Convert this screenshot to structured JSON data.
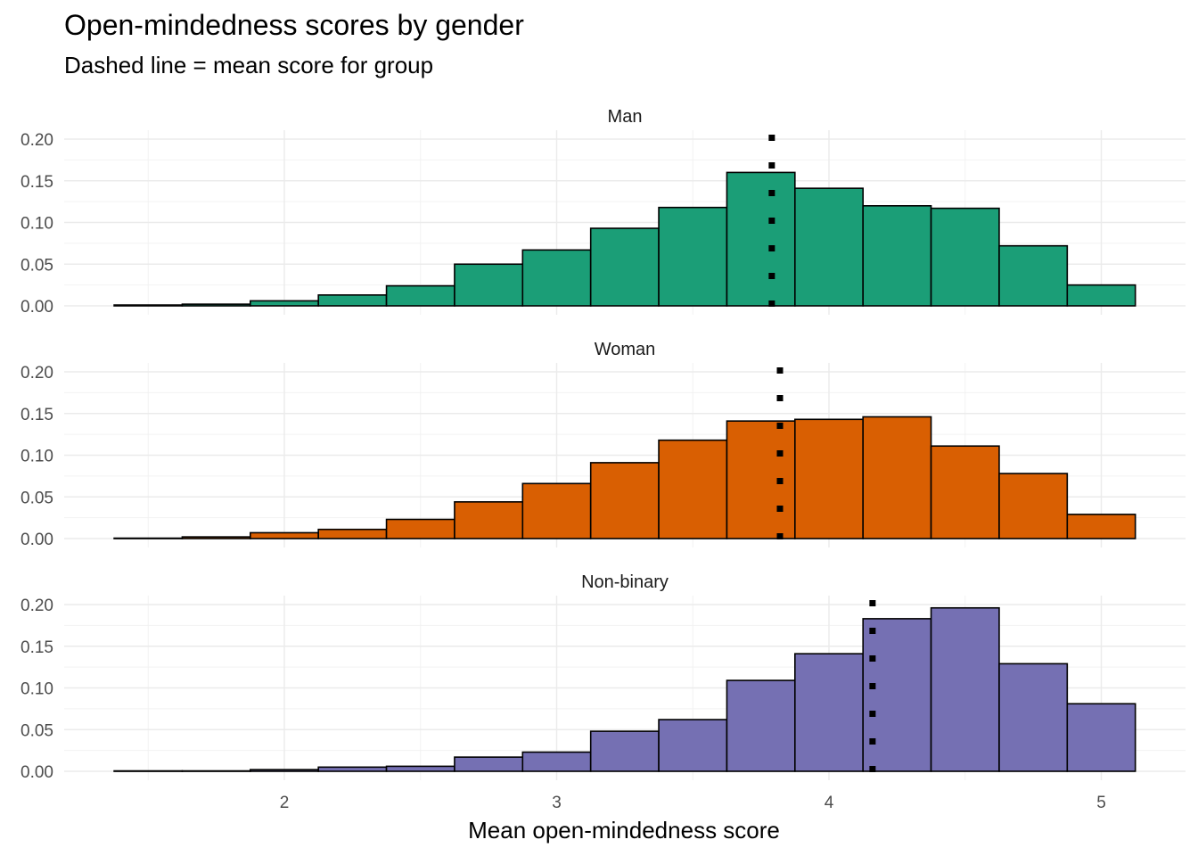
{
  "chart_data": {
    "type": "histogram",
    "title": "Open-mindedness scores by gender",
    "subtitle": "Dashed line = mean score for group",
    "xlabel": "Mean open-mindedness score",
    "ylabel": "",
    "xlim": [
      1.3,
      5.3
    ],
    "ylim": [
      0,
      0.2
    ],
    "x_ticks": [
      2,
      3,
      4,
      5
    ],
    "y_ticks": [
      "0.00",
      "0.05",
      "0.10",
      "0.15",
      "0.20"
    ],
    "grid": true,
    "bin_edges": [
      1.375,
      1.625,
      1.875,
      2.125,
      2.375,
      2.625,
      2.875,
      3.125,
      3.375,
      3.625,
      3.875,
      4.125,
      4.375,
      4.625,
      4.875,
      5.125
    ],
    "panels": [
      {
        "name": "Man",
        "color": "#1B9E77",
        "mean": 3.79,
        "values": [
          0.001,
          0.002,
          0.006,
          0.013,
          0.024,
          0.05,
          0.067,
          0.093,
          0.118,
          0.16,
          0.141,
          0.12,
          0.117,
          0.072,
          0.025
        ]
      },
      {
        "name": "Woman",
        "color": "#D95F02",
        "mean": 3.82,
        "values": [
          0.0005,
          0.002,
          0.007,
          0.011,
          0.023,
          0.044,
          0.066,
          0.091,
          0.118,
          0.141,
          0.143,
          0.146,
          0.111,
          0.078,
          0.029
        ]
      },
      {
        "name": "Non-binary",
        "color": "#7570B3",
        "mean": 4.16,
        "values": [
          0.0005,
          0.0005,
          0.002,
          0.005,
          0.006,
          0.017,
          0.023,
          0.048,
          0.062,
          0.109,
          0.141,
          0.183,
          0.196,
          0.129,
          0.081
        ]
      }
    ]
  }
}
